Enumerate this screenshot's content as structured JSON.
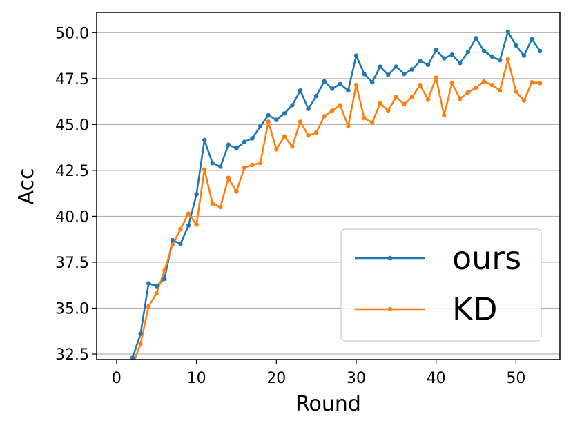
{
  "chart_data": {
    "type": "line",
    "xlabel": "Round",
    "ylabel": "Acc",
    "xlim": [
      -2.5,
      55.5
    ],
    "ylim": [
      32.2,
      51.1
    ],
    "xticks": [
      0,
      10,
      20,
      30,
      40,
      50
    ],
    "xtick_labels": [
      "0",
      "10",
      "20",
      "30",
      "40",
      "50"
    ],
    "yticks": [
      32.5,
      35.0,
      37.5,
      40.0,
      42.5,
      45.0,
      47.5,
      50.0
    ],
    "ytick_labels": [
      "32.5",
      "35.0",
      "37.5",
      "40.0",
      "42.5",
      "45.0",
      "47.5",
      "50.0"
    ],
    "grid": "horizontal",
    "legend_position": "lower-right",
    "x": [
      2,
      3,
      4,
      5,
      6,
      7,
      8,
      9,
      10,
      11,
      12,
      13,
      14,
      15,
      16,
      17,
      18,
      19,
      20,
      21,
      22,
      23,
      24,
      25,
      26,
      27,
      28,
      29,
      30,
      31,
      32,
      33,
      34,
      35,
      36,
      37,
      38,
      39,
      40,
      41,
      42,
      43,
      44,
      45,
      46,
      47,
      48,
      49,
      50,
      51,
      52,
      53
    ],
    "series": [
      {
        "name": "ours",
        "color": "#1f77b4",
        "values": [
          32.3,
          33.6,
          36.35,
          36.2,
          36.6,
          38.7,
          38.5,
          39.5,
          41.2,
          44.15,
          42.9,
          42.7,
          43.9,
          43.7,
          44.05,
          44.25,
          44.9,
          45.5,
          45.25,
          45.6,
          46.05,
          46.85,
          45.85,
          46.55,
          47.35,
          46.95,
          47.2,
          46.85,
          48.75,
          47.75,
          47.3,
          48.15,
          47.7,
          48.15,
          47.75,
          48.0,
          48.45,
          48.25,
          49.05,
          48.6,
          48.8,
          48.35,
          48.95,
          49.7,
          49.0,
          48.7,
          48.5,
          50.05,
          49.3,
          48.75,
          49.65,
          49.0
        ]
      },
      {
        "name": "KD",
        "color": "#ff7f0e",
        "values": [
          31.9,
          33.05,
          35.1,
          35.8,
          37.05,
          38.45,
          39.3,
          40.15,
          39.55,
          42.55,
          40.7,
          40.5,
          42.1,
          41.35,
          42.65,
          42.8,
          42.9,
          45.15,
          43.65,
          44.35,
          43.8,
          45.15,
          44.4,
          44.55,
          45.45,
          45.75,
          46.05,
          44.9,
          47.15,
          45.35,
          45.1,
          46.15,
          45.75,
          46.5,
          46.1,
          46.5,
          47.15,
          46.35,
          47.55,
          45.5,
          47.25,
          46.4,
          46.75,
          47.0,
          47.35,
          47.15,
          46.85,
          48.55,
          46.8,
          46.3,
          47.3,
          47.25
        ]
      }
    ]
  }
}
